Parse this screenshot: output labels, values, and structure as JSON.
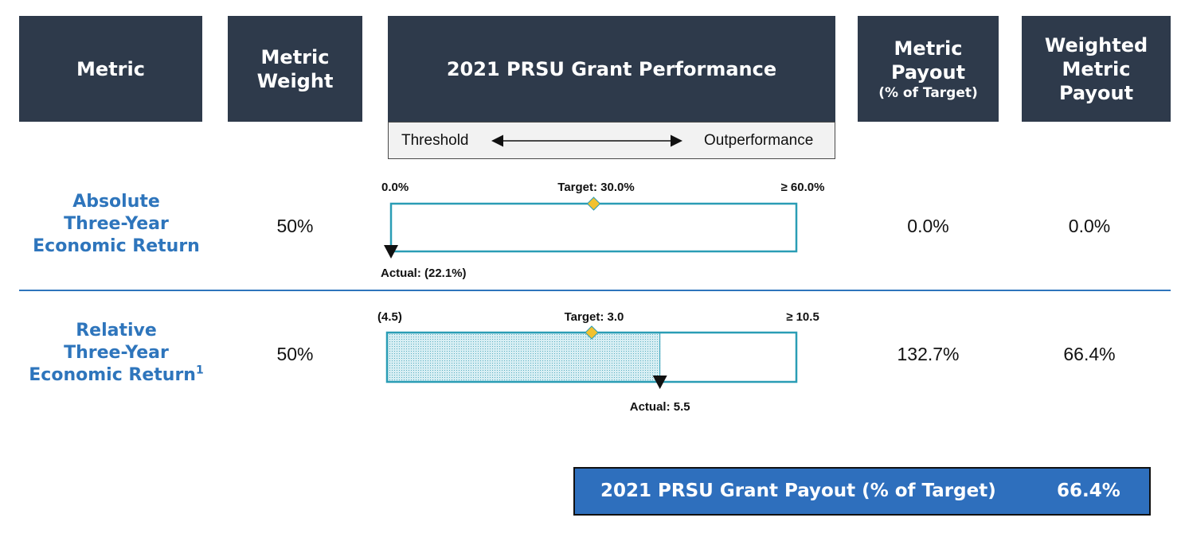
{
  "headers": {
    "metric": "Metric",
    "weight_line1": "Metric",
    "weight_line2": "Weight",
    "performance": "2021 PRSU Grant Performance",
    "payout_line1": "Metric",
    "payout_line2": "Payout",
    "payout_line3": "(% of Target)",
    "weighted_line1": "Weighted",
    "weighted_line2": "Metric",
    "weighted_line3": "Payout"
  },
  "scale": {
    "left": "Threshold",
    "right": "Outperformance"
  },
  "colors": {
    "header_bg": "#2e3a4b",
    "accent_blue": "#2e75bc",
    "gauge_teal": "#2a9db5",
    "target_marker": "#f2c12e"
  },
  "rows": [
    {
      "name_line1": "Absolute",
      "name_line2": "Three-Year",
      "name_line3": "Economic Return",
      "footnote": "",
      "weight": "50%",
      "metric_payout": "0.0%",
      "weighted_payout": "0.0%",
      "gauge": {
        "min_label": "0.0%",
        "max_label": "≥ 60.0%",
        "target_label": "Target: 30.0%",
        "actual_label": "Actual: (22.1%)",
        "min": 0.0,
        "max": 60.0,
        "target": 30.0,
        "actual": -22.1
      }
    },
    {
      "name_line1": "Relative",
      "name_line2": "Three-Year",
      "name_line3": "Economic Return",
      "footnote": "1",
      "weight": "50%",
      "metric_payout": "132.7%",
      "weighted_payout": "66.4%",
      "gauge": {
        "min_label": "(4.5)",
        "max_label": "≥ 10.5",
        "target_label": "Target: 3.0",
        "actual_label": "Actual: 5.5",
        "min": -4.5,
        "max": 10.5,
        "target": 3.0,
        "actual": 5.5
      }
    }
  ],
  "total": {
    "label": "2021 PRSU Grant Payout (% of Target)",
    "value": "66.4%"
  }
}
